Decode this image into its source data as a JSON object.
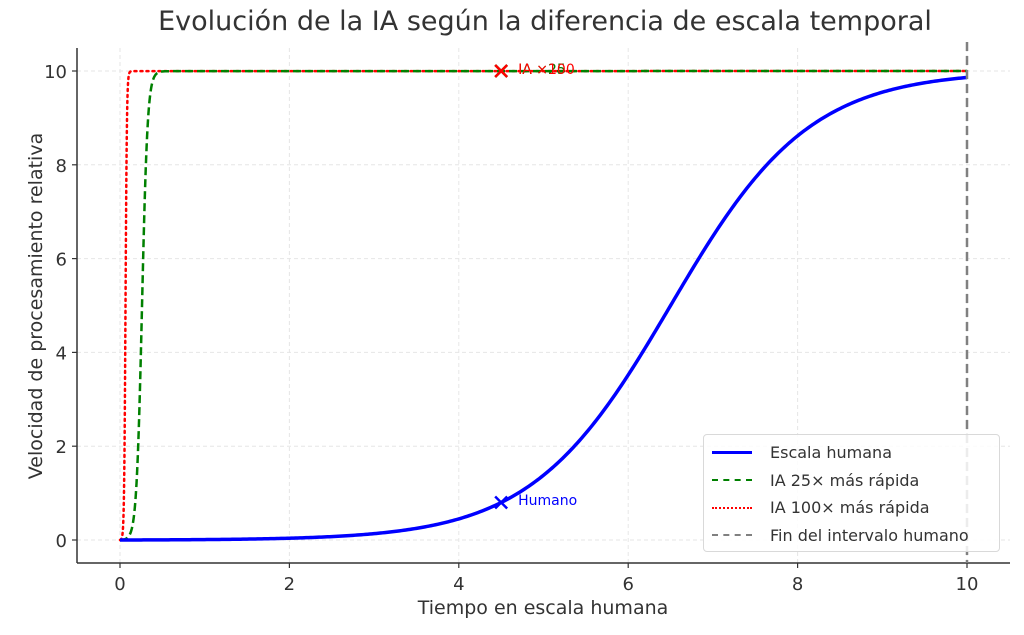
{
  "chart": {
    "title": "Evolución de la IA según la diferencia de escala temporal",
    "xlabel": "Tiempo en escala humana",
    "ylabel": "Velocidad de procesamiento relativa",
    "legend": [
      {
        "label": "Escala humana",
        "color": "#0000ff",
        "style": "solid"
      },
      {
        "label": "IA 25× más rápida",
        "color": "#008000",
        "style": "dashed"
      },
      {
        "label": "IA 100× más rápida",
        "color": "#ff0000",
        "style": "dotted"
      },
      {
        "label": "Fin del intervalo humano",
        "color": "#808080",
        "style": "dashed"
      }
    ],
    "annotations": {
      "human": "Humano",
      "ia25": "IA ×25",
      "ia100": "IA ×100"
    }
  },
  "chart_data": {
    "type": "line",
    "title": "Evolución de la IA según la diferencia de escala temporal",
    "xlabel": "Tiempo en escala humana",
    "ylabel": "Velocidad de procesamiento relativa",
    "xlim": [
      -0.5,
      10.5
    ],
    "ylim": [
      -0.5,
      10.5
    ],
    "xticks": [
      0,
      2,
      4,
      6,
      8,
      10
    ],
    "yticks": [
      0,
      2,
      4,
      6,
      8,
      10
    ],
    "grid": true,
    "legend_position": "lower right",
    "x": [
      0,
      1,
      2,
      3,
      4,
      4.5,
      5,
      6,
      6.5,
      7,
      8,
      9,
      10
    ],
    "series": [
      {
        "name": "Escala humana",
        "color": "#0000ff",
        "style": "solid",
        "values": [
          0.0,
          0.01,
          0.04,
          0.14,
          0.47,
          0.8,
          1.38,
          3.52,
          5.0,
          6.48,
          8.62,
          9.55,
          9.86
        ]
      },
      {
        "name": "IA 25× más rápida",
        "color": "#008000",
        "style": "dashed",
        "values": [
          0.0,
          10,
          10,
          10,
          10,
          10,
          10,
          10,
          10,
          10,
          10,
          10,
          10
        ]
      },
      {
        "name": "IA 100× más rápida",
        "color": "#ff0000",
        "style": "dotted",
        "values": [
          0.0,
          10,
          10,
          10,
          10,
          10,
          10,
          10,
          10,
          10,
          10,
          10,
          10
        ]
      }
    ],
    "vlines": [
      {
        "name": "Fin del intervalo humano",
        "x": 10,
        "color": "#808080",
        "style": "dashed"
      }
    ],
    "annotations": [
      {
        "text": "Humano",
        "x": 4.5,
        "y": 0.8,
        "color": "#0000ff",
        "marker": "x"
      },
      {
        "text": "IA ×25",
        "x": 4.5,
        "y": 10,
        "color": "#008000",
        "marker": "x"
      },
      {
        "text": "IA ×100",
        "x": 4.5,
        "y": 10,
        "color": "#ff0000",
        "marker": "x"
      }
    ]
  }
}
